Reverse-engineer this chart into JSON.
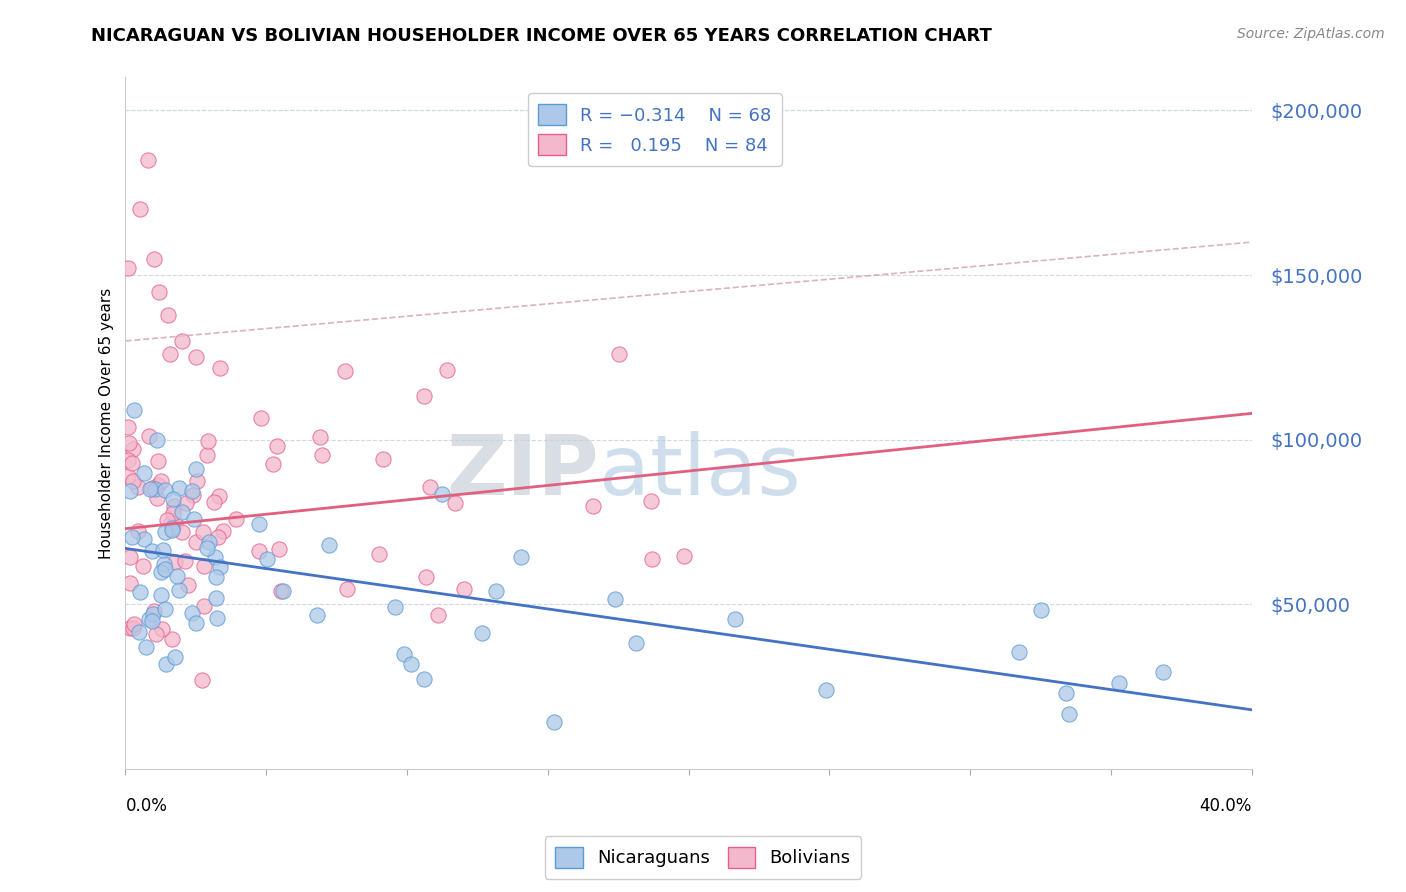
{
  "title": "NICARAGUAN VS BOLIVIAN HOUSEHOLDER INCOME OVER 65 YEARS CORRELATION CHART",
  "source": "Source: ZipAtlas.com",
  "ylabel": "Householder Income Over 65 years",
  "watermark_zip": "ZIP",
  "watermark_atlas": "atlas",
  "xmin": 0.0,
  "xmax": 0.4,
  "ymin": 0,
  "ymax": 210000,
  "yticks": [
    50000,
    100000,
    150000,
    200000
  ],
  "color_nicaraguan_fill": "#adc8e8",
  "color_nicaraguan_edge": "#5b9bd5",
  "color_bolivian_fill": "#f4b8cc",
  "color_bolivian_edge": "#e8608a",
  "color_line_nicaraguan": "#4472c4",
  "color_line_bolivian": "#e06080",
  "color_trendline_gray": "#d0a0b0",
  "color_ytick": "#4472c4",
  "background_color": "#ffffff",
  "grid_color": "#d0d8e8",
  "legend_text_color": "#4472c4"
}
